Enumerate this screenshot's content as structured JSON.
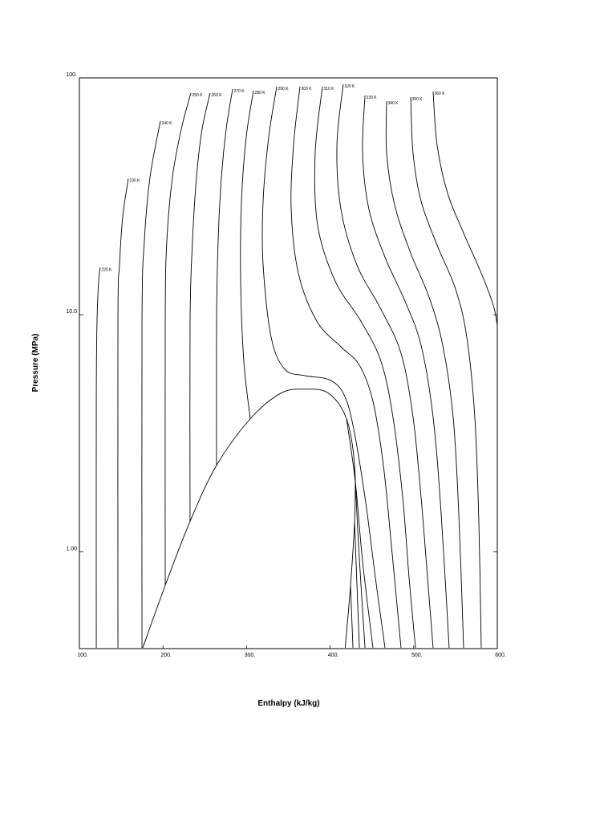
{
  "chart_data": {
    "type": "line",
    "xlabel": "Enthalpy (kJ/kg)",
    "ylabel": "Pressure (MPa)",
    "xlim": [
      100,
      600
    ],
    "ylim": [
      0.39,
      100
    ],
    "yscale": "log",
    "xticks": [
      {
        "value": 100,
        "label": "100."
      },
      {
        "value": 200,
        "label": "200."
      },
      {
        "value": 300,
        "label": "300."
      },
      {
        "value": 400,
        "label": "400."
      },
      {
        "value": 500,
        "label": "500."
      },
      {
        "value": 600,
        "label": "600."
      }
    ],
    "yticks": [
      {
        "value": 1,
        "label": "1.00"
      },
      {
        "value": 10,
        "label": "10.0"
      },
      {
        "value": 100,
        "label": "100."
      }
    ],
    "color": "#000000",
    "dome": {
      "x": [
        175.8,
        202.7,
        232.4,
        264.1,
        304.4,
        341,
        369.7,
        398,
        419.6,
        429.2,
        429.2,
        424.4,
        418.0
      ],
      "values": [
        0.393,
        0.721,
        1.344,
        2.317,
        3.638,
        4.667,
        4.85,
        4.667,
        3.638,
        2.317,
        1.344,
        0.721,
        0.393
      ]
    },
    "series": [
      {
        "name": "220 K",
        "x": [
          120.2,
          120.2,
          121.1,
          123.0,
          124.9
        ],
        "values": [
          0.393,
          4.316,
          9.397,
          13.87,
          15.82
        ]
      },
      {
        "name": "230 K",
        "x": [
          146.1,
          146.1,
          148.0,
          151.8,
          158.5
        ],
        "values": [
          0.393,
          9.397,
          16.2,
          25.84,
          37.52
        ]
      },
      {
        "name": "240 K",
        "x": [
          174.9,
          174.9,
          177.7,
          184.5,
          196.9
        ],
        "values": [
          0.393,
          9.397,
          20.46,
          38.11,
          65.7
        ]
      },
      {
        "name": "250 K",
        "x": [
          202.7,
          202.7,
          204.6,
          211.3,
          221.9,
          233.4,
          null,
          424.4,
          427.3
        ],
        "values": [
          0.721,
          9.397,
          20.46,
          38.11,
          60.78,
          86.3,
          null,
          0.721,
          0.393
        ]
      },
      {
        "name": "260 K",
        "x": [
          232.4,
          232.4,
          235.3,
          240.1,
          246.8,
          256.4,
          null,
          429.2,
          432.1,
          435.0
        ],
        "values": [
          1.344,
          9.397,
          20.46,
          38.11,
          60.78,
          86.3,
          null,
          1.344,
          0.721,
          0.393
        ]
      },
      {
        "name": "270 K",
        "x": [
          264.1,
          264.1,
          266.0,
          269.9,
          275.6,
          283.3,
          null,
          429.2,
          434.0,
          441.7
        ],
        "values": [
          2.317,
          9.397,
          20.46,
          38.11,
          60.78,
          89.7,
          null,
          2.317,
          1.064,
          0.393
        ]
      },
      {
        "name": "280 K",
        "x": [
          304.4,
          296.7,
          292.9,
          293.9,
          299.6,
          308.3,
          null,
          419.6,
          430.1,
          438.8,
          451.2
        ],
        "values": [
          3.638,
          6.37,
          13.87,
          30.19,
          56.23,
          88.3,
          null,
          3.638,
          1.983,
          0.911,
          0.393
        ]
      },
      {
        "name": "290 K",
        "x": [
          336.1,
          326.5,
          319.8,
          319.8,
          329.4,
          345.7,
          369.7,
          398.5,
          415.7,
          427.3,
          441.7,
          454.1,
          465.6
        ],
        "values": [
          91.8,
          56.23,
          30.19,
          16.2,
          8.043,
          5.892,
          5.537,
          5.325,
          4.667,
          3.42,
          1.697,
          0.78,
          0.393
        ]
      },
      {
        "name": "300 K",
        "x": [
          363.9,
          356.2,
          353.4,
          362.0,
          384.1,
          412.9,
          435.0,
          451.2,
          463.7,
          473.3,
          484.8
        ],
        "values": [
          91.8,
          52.02,
          27.92,
          14.99,
          9.397,
          7.328,
          6.128,
          4.316,
          2.317,
          1.064,
          0.393
        ]
      },
      {
        "name": "310 K",
        "x": [
          390.8,
          382.1,
          385.0,
          406.1,
          436.8,
          460.8,
          475.2,
          486.8,
          494.4,
          502.1
        ],
        "values": [
          91.8,
          48.13,
          23.89,
          13.87,
          9.397,
          6.37,
          3.694,
          1.697,
          0.78,
          0.393
        ]
      },
      {
        "name": "320 K",
        "x": [
          415.7,
          408.1,
          412.9,
          432.1,
          460.8,
          484.8,
          499.2,
          508.8,
          516.5,
          523.2
        ],
        "values": [
          93.9,
          52.02,
          27.92,
          16.2,
          10.56,
          6.885,
          3.694,
          1.697,
          0.78,
          0.393
        ]
      },
      {
        "name": "330 K",
        "x": [
          441.7,
          438.8,
          446.4,
          465.6,
          489.6,
          508.8,
          523.2,
          532.8,
          542.4
        ],
        "values": [
          84.3,
          48.13,
          27.92,
          17.51,
          11.41,
          7.44,
          3.694,
          1.453,
          0.393
        ]
      },
      {
        "name": "340 K",
        "x": [
          467.6,
          467.6,
          477.2,
          496.4,
          518.4,
          534.7,
          547.2,
          553.9,
          559.7
        ],
        "values": [
          79.8,
          48.13,
          29.03,
          18.2,
          11.87,
          7.44,
          3.694,
          1.453,
          0.393
        ]
      },
      {
        "name": "350 K",
        "x": [
          496.4,
          499.2,
          508.8,
          528.0,
          550.1,
          563.5,
          573.1,
          577.9,
          580.8
        ],
        "values": [
          82.98,
          48.13,
          30.19,
          19.67,
          12.83,
          8.043,
          3.694,
          1.344,
          0.393
        ]
      },
      {
        "name": "360 K",
        "x": [
          523.2,
          528.0,
          540.5,
          559.7,
          580.8,
          595.2,
          600.0
        ],
        "values": [
          87.6,
          52.02,
          32.63,
          22.12,
          14.99,
          10.98,
          9.04
        ]
      }
    ]
  }
}
